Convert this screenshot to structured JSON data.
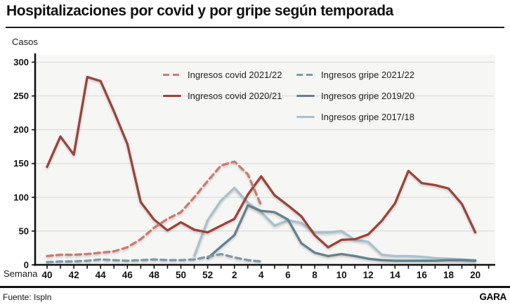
{
  "header": {
    "title": "Hospitalizaciones por covid y por gripe según temporada"
  },
  "footer": {
    "source": "Fuente: Ispln",
    "brand": "GARA"
  },
  "chart_data": {
    "type": "line",
    "title": "Hospitalizaciones por covid y por gripe según temporada",
    "xlabel": "Semana",
    "ylabel": "Casos",
    "x_weeks": [
      40,
      41,
      42,
      43,
      44,
      45,
      46,
      47,
      48,
      49,
      50,
      51,
      52,
      1,
      2,
      3,
      4,
      5,
      6,
      7,
      8,
      9,
      10,
      11,
      12,
      13,
      14,
      15,
      16,
      17,
      18,
      19,
      20
    ],
    "x_tick_labels": [
      "40",
      "42",
      "44",
      "46",
      "48",
      "50",
      "52",
      "2",
      "4",
      "6",
      "8",
      "10",
      "12",
      "14",
      "16",
      "18",
      "20"
    ],
    "y_ticks": [
      0,
      50,
      100,
      150,
      200,
      250,
      300
    ],
    "ylim": [
      0,
      310
    ],
    "grid": "horizontal",
    "legend_position": "top-inside-two-columns",
    "colors": {
      "axis": "#111111",
      "gridline": "#d7d7d5",
      "plot_background": "#f6f6f5"
    },
    "series": [
      {
        "name": "Ingresos covid 2021/22",
        "color": "#c87c6f",
        "dashed": true,
        "values": [
          13,
          15,
          15,
          16,
          18,
          20,
          26,
          38,
          55,
          68,
          78,
          100,
          124,
          147,
          153,
          134,
          88,
          null,
          null,
          null,
          null,
          null,
          null,
          null,
          null,
          null,
          null,
          null,
          null,
          null,
          null,
          null,
          null
        ]
      },
      {
        "name": "Ingresos covid 2020/21",
        "color": "#9a4338",
        "dashed": false,
        "values": [
          145,
          190,
          163,
          278,
          272,
          227,
          179,
          93,
          67,
          51,
          63,
          52,
          48,
          58,
          68,
          104,
          131,
          103,
          88,
          72,
          44,
          26,
          37,
          38,
          45,
          65,
          91,
          139,
          121,
          118,
          113,
          90,
          48
        ]
      },
      {
        "name": "Ingresos gripe 2021/22",
        "color": "#7e99a7",
        "dashed": true,
        "values": [
          4,
          5,
          5,
          6,
          8,
          7,
          6,
          7,
          8,
          7,
          7,
          8,
          12,
          16,
          11,
          7,
          5,
          null,
          null,
          null,
          null,
          null,
          null,
          null,
          null,
          null,
          null,
          null,
          null,
          null,
          null,
          null,
          null
        ]
      },
      {
        "name": "Ingresos gripe 2019/20",
        "color": "#64808d",
        "dashed": false,
        "values": [
          null,
          null,
          null,
          null,
          null,
          null,
          null,
          null,
          null,
          null,
          null,
          null,
          10,
          27,
          44,
          88,
          80,
          78,
          67,
          32,
          18,
          13,
          16,
          13,
          9,
          7,
          6,
          6,
          6,
          6,
          7,
          7,
          6
        ]
      },
      {
        "name": "Ingresos gripe 2017/18",
        "color": "#a9c1cc",
        "dashed": false,
        "values": [
          null,
          null,
          null,
          null,
          null,
          null,
          null,
          null,
          null,
          null,
          null,
          13,
          66,
          95,
          114,
          92,
          78,
          58,
          66,
          62,
          48,
          48,
          50,
          37,
          34,
          15,
          13,
          13,
          12,
          10,
          9,
          8,
          7
        ]
      }
    ]
  }
}
